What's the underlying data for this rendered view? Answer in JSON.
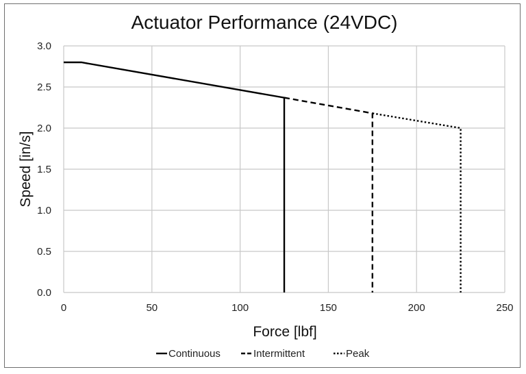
{
  "chart_data": {
    "type": "line",
    "title": "Actuator Performance (24VDC)",
    "xlabel": "Force [lbf]",
    "ylabel": "Speed [in/s]",
    "xlim": [
      0,
      250
    ],
    "ylim": [
      0,
      3.0
    ],
    "xticks": [
      0,
      50,
      100,
      150,
      200,
      250
    ],
    "yticks": [
      "0.0",
      "0.5",
      "1.0",
      "1.5",
      "2.0",
      "2.5",
      "3.0"
    ],
    "grid": true,
    "legend_position": "bottom",
    "series": [
      {
        "name": "Continuous",
        "style": "solid",
        "color": "#000000",
        "points": [
          [
            0,
            2.8
          ],
          [
            10,
            2.8
          ],
          [
            125,
            2.37
          ],
          [
            125,
            0
          ]
        ]
      },
      {
        "name": "Intermittent",
        "style": "dashed",
        "color": "#000000",
        "points": [
          [
            125,
            2.37
          ],
          [
            175,
            2.18
          ],
          [
            175,
            0
          ]
        ]
      },
      {
        "name": "Peak",
        "style": "dotted",
        "color": "#000000",
        "points": [
          [
            175,
            2.18
          ],
          [
            225,
            2.0
          ],
          [
            225,
            0
          ]
        ]
      }
    ]
  }
}
